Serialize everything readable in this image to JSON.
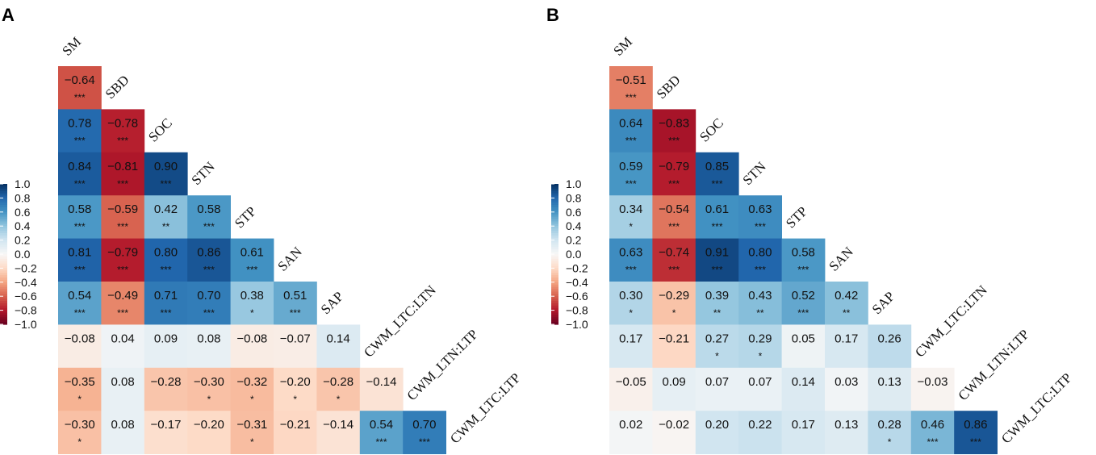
{
  "chart_data": [
    {
      "type": "heatmap",
      "panel_label": "A",
      "variables": [
        "SM",
        "SBD",
        "SOC",
        "STN",
        "STP",
        "SAN",
        "SAP",
        "CWM_LTC:LTN",
        "CWM_LTN:LTP",
        "CWM_LTC:LTP"
      ],
      "colorbar": {
        "ticks": [
          "1.0",
          "0.8",
          "0.6",
          "0.4",
          "0.2",
          "0.0",
          "−0.2",
          "−0.4",
          "−0.6",
          "−0.8",
          "−1.0"
        ],
        "range": [
          -1,
          1
        ],
        "palette": "RdBu"
      },
      "rows": [
        [
          {
            "v": -0.64,
            "s": "***"
          }
        ],
        [
          {
            "v": 0.78,
            "s": "***"
          },
          {
            "v": -0.78,
            "s": "***"
          }
        ],
        [
          {
            "v": 0.84,
            "s": "***"
          },
          {
            "v": -0.81,
            "s": "***"
          },
          {
            "v": 0.9,
            "s": "***"
          }
        ],
        [
          {
            "v": 0.58,
            "s": "***"
          },
          {
            "v": -0.59,
            "s": "***"
          },
          {
            "v": 0.42,
            "s": "**"
          },
          {
            "v": 0.58,
            "s": "***"
          }
        ],
        [
          {
            "v": 0.81,
            "s": "***"
          },
          {
            "v": -0.79,
            "s": "***"
          },
          {
            "v": 0.8,
            "s": "***"
          },
          {
            "v": 0.86,
            "s": "***"
          },
          {
            "v": 0.61,
            "s": "***"
          }
        ],
        [
          {
            "v": 0.54,
            "s": "***"
          },
          {
            "v": -0.49,
            "s": "***"
          },
          {
            "v": 0.71,
            "s": "***"
          },
          {
            "v": 0.7,
            "s": "***"
          },
          {
            "v": 0.38,
            "s": "*"
          },
          {
            "v": 0.51,
            "s": "***"
          }
        ],
        [
          {
            "v": -0.08,
            "s": ""
          },
          {
            "v": 0.04,
            "s": ""
          },
          {
            "v": 0.09,
            "s": ""
          },
          {
            "v": 0.08,
            "s": ""
          },
          {
            "v": -0.08,
            "s": ""
          },
          {
            "v": -0.07,
            "s": ""
          },
          {
            "v": 0.14,
            "s": ""
          }
        ],
        [
          {
            "v": -0.35,
            "s": "*"
          },
          {
            "v": 0.08,
            "s": ""
          },
          {
            "v": -0.28,
            "s": ""
          },
          {
            "v": -0.3,
            "s": "*"
          },
          {
            "v": -0.32,
            "s": "*"
          },
          {
            "v": -0.2,
            "s": "*"
          },
          {
            "v": -0.28,
            "s": "*"
          },
          {
            "v": -0.14,
            "s": ""
          }
        ],
        [
          {
            "v": -0.3,
            "s": "*"
          },
          {
            "v": 0.08,
            "s": ""
          },
          {
            "v": -0.17,
            "s": ""
          },
          {
            "v": -0.2,
            "s": ""
          },
          {
            "v": -0.31,
            "s": "*"
          },
          {
            "v": -0.21,
            "s": ""
          },
          {
            "v": -0.14,
            "s": ""
          },
          {
            "v": 0.54,
            "s": "***"
          },
          {
            "v": 0.7,
            "s": "***"
          }
        ]
      ]
    },
    {
      "type": "heatmap",
      "panel_label": "B",
      "variables": [
        "SM",
        "SBD",
        "SOC",
        "STN",
        "STP",
        "SAN",
        "SAP",
        "CWM_LTC:LTN",
        "CWM_LTN:LTP",
        "CWM_LTC:LTP"
      ],
      "colorbar": {
        "ticks": [
          "1.0",
          "0.8",
          "0.6",
          "0.4",
          "0.2",
          "0.0",
          "−0.2",
          "−0.4",
          "−0.6",
          "−0.8",
          "−1.0"
        ],
        "range": [
          -1,
          1
        ],
        "palette": "RdBu"
      },
      "rows": [
        [
          {
            "v": -0.51,
            "s": "***"
          }
        ],
        [
          {
            "v": 0.64,
            "s": "***"
          },
          {
            "v": -0.83,
            "s": "***"
          }
        ],
        [
          {
            "v": 0.59,
            "s": "***"
          },
          {
            "v": -0.79,
            "s": "***"
          },
          {
            "v": 0.85,
            "s": "***"
          }
        ],
        [
          {
            "v": 0.34,
            "s": "*"
          },
          {
            "v": -0.54,
            "s": "***"
          },
          {
            "v": 0.61,
            "s": "***"
          },
          {
            "v": 0.63,
            "s": "***"
          }
        ],
        [
          {
            "v": 0.63,
            "s": "***"
          },
          {
            "v": -0.74,
            "s": "***"
          },
          {
            "v": 0.91,
            "s": "***"
          },
          {
            "v": 0.8,
            "s": "***"
          },
          {
            "v": 0.58,
            "s": "***"
          }
        ],
        [
          {
            "v": 0.3,
            "s": "*"
          },
          {
            "v": -0.29,
            "s": "*"
          },
          {
            "v": 0.39,
            "s": "**"
          },
          {
            "v": 0.43,
            "s": "**"
          },
          {
            "v": 0.52,
            "s": "***"
          },
          {
            "v": 0.42,
            "s": "**"
          }
        ],
        [
          {
            "v": 0.17,
            "s": ""
          },
          {
            "v": -0.21,
            "s": ""
          },
          {
            "v": 0.27,
            "s": "*"
          },
          {
            "v": 0.29,
            "s": "*"
          },
          {
            "v": 0.05,
            "s": ""
          },
          {
            "v": 0.17,
            "s": ""
          },
          {
            "v": 0.26,
            "s": ""
          }
        ],
        [
          {
            "v": -0.05,
            "s": ""
          },
          {
            "v": 0.09,
            "s": ""
          },
          {
            "v": 0.07,
            "s": ""
          },
          {
            "v": 0.07,
            "s": ""
          },
          {
            "v": 0.14,
            "s": ""
          },
          {
            "v": 0.03,
            "s": ""
          },
          {
            "v": 0.13,
            "s": ""
          },
          {
            "v": -0.03,
            "s": ""
          }
        ],
        [
          {
            "v": 0.02,
            "s": ""
          },
          {
            "v": -0.02,
            "s": ""
          },
          {
            "v": 0.2,
            "s": ""
          },
          {
            "v": 0.22,
            "s": ""
          },
          {
            "v": 0.17,
            "s": ""
          },
          {
            "v": 0.13,
            "s": ""
          },
          {
            "v": 0.28,
            "s": "*"
          },
          {
            "v": 0.46,
            "s": "***"
          },
          {
            "v": 0.86,
            "s": "***"
          }
        ]
      ]
    }
  ]
}
